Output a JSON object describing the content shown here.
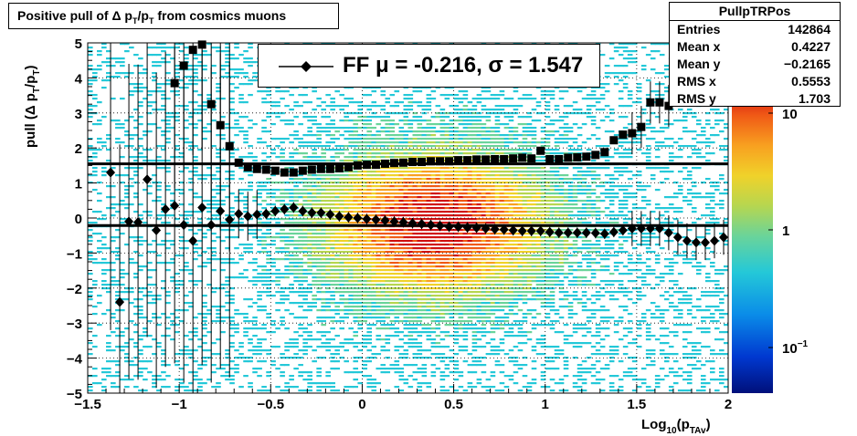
{
  "title": {
    "prefix": "Positive pull of",
    "delta": "Δ",
    "p": "p",
    "sub": "T"
  },
  "stats": {
    "name": "PullpTRPos",
    "rows": [
      {
        "label": "Entries",
        "value": "142864"
      },
      {
        "label": "Mean x",
        "value": "0.4227"
      },
      {
        "label": "Mean y",
        "value": "−0.2165"
      },
      {
        "label": "RMS x",
        "value": "0.5553"
      },
      {
        "label": "RMS y",
        "value": "1.703"
      }
    ]
  },
  "legend": {
    "label": "FF μ = -0.216, σ =   1.547"
  },
  "x_axis": {
    "title_main": "Log",
    "title_sub1": "10",
    "title_p": "(p",
    "title_sub2": "TAv",
    "title_close": ")",
    "ticks": [
      "−1.5",
      "−1",
      "−0.5",
      "0",
      "0.5",
      "1",
      "1.5",
      "2"
    ]
  },
  "y_axis": {
    "title": "pull (Δ p",
    "title_sub": "T",
    "title_mid": "/p",
    "title_sub2": "T",
    "title_close": ")",
    "ticks": [
      "−5",
      "−4",
      "−3",
      "−2",
      "−1",
      "0",
      "1",
      "2",
      "3",
      "4",
      "5"
    ]
  },
  "colorbar": {
    "labels": [
      "10",
      "1",
      "10"
    ],
    "exp": "−1"
  },
  "chart_data": {
    "type": "scatter",
    "title": "Positive pull of Δ p_T/p_T from cosmics muons",
    "xlabel": "Log10(p_TAv)",
    "ylabel": "pull (Δ p_T/p_T)",
    "xlim": [
      -1.5,
      2
    ],
    "ylim": [
      -5,
      5
    ],
    "background": "2D histogram (heatmap) of pull vs Log10(p_TAv), log color scale",
    "horizontal_lines": [
      1.547,
      -0.216
    ],
    "series": [
      {
        "name": "FF μ = -0.216, σ =   1.547",
        "marker": "diamond",
        "x": [
          -1.375,
          -1.325,
          -1.275,
          -1.225,
          -1.175,
          -1.125,
          -1.075,
          -1.025,
          -0.975,
          -0.925,
          -0.875,
          -0.825,
          -0.775,
          -0.725,
          -0.675,
          -0.625,
          -0.575,
          -0.525,
          -0.475,
          -0.425,
          -0.375,
          -0.325,
          -0.275,
          -0.225,
          -0.175,
          -0.125,
          -0.075,
          -0.025,
          0.025,
          0.075,
          0.125,
          0.175,
          0.225,
          0.275,
          0.325,
          0.375,
          0.425,
          0.475,
          0.525,
          0.575,
          0.625,
          0.675,
          0.725,
          0.775,
          0.825,
          0.875,
          0.925,
          0.975,
          1.025,
          1.075,
          1.125,
          1.175,
          1.225,
          1.275,
          1.325,
          1.375,
          1.425,
          1.475,
          1.525,
          1.575,
          1.625,
          1.675,
          1.725,
          1.775,
          1.825,
          1.875,
          1.925,
          1.975
        ],
        "y": [
          1.3,
          -2.4,
          -0.1,
          -0.12,
          1.1,
          -0.35,
          0.25,
          0.35,
          -0.2,
          -0.65,
          0.3,
          -0.2,
          0.2,
          -0.05,
          0.12,
          0.05,
          0.1,
          0.12,
          0.2,
          0.25,
          0.3,
          0.2,
          0.15,
          0.15,
          0.1,
          0.05,
          0.02,
          0.0,
          -0.03,
          -0.05,
          -0.07,
          -0.1,
          -0.12,
          -0.15,
          -0.17,
          -0.2,
          -0.22,
          -0.25,
          -0.25,
          -0.27,
          -0.28,
          -0.3,
          -0.32,
          -0.33,
          -0.35,
          -0.37,
          -0.37,
          -0.37,
          -0.4,
          -0.42,
          -0.42,
          -0.42,
          -0.42,
          -0.43,
          -0.45,
          -0.4,
          -0.35,
          -0.3,
          -0.3,
          -0.3,
          -0.3,
          -0.42,
          -0.55,
          -0.65,
          -0.7,
          -0.7,
          -0.65,
          -0.55
        ]
      },
      {
        "name": "RMS",
        "marker": "square",
        "x": [
          -1.025,
          -0.975,
          -0.925,
          -0.875,
          -0.825,
          -0.775,
          -0.725,
          -0.675,
          -0.625,
          -0.575,
          -0.525,
          -0.475,
          -0.425,
          -0.375,
          -0.325,
          -0.275,
          -0.225,
          -0.175,
          -0.125,
          -0.075,
          -0.025,
          0.025,
          0.075,
          0.125,
          0.175,
          0.225,
          0.275,
          0.325,
          0.375,
          0.425,
          0.475,
          0.525,
          0.575,
          0.625,
          0.675,
          0.725,
          0.775,
          0.825,
          0.875,
          0.925,
          0.975,
          1.025,
          1.075,
          1.125,
          1.175,
          1.225,
          1.275,
          1.325,
          1.375,
          1.425,
          1.475,
          1.525,
          1.575,
          1.625,
          1.675,
          1.725,
          1.775,
          1.825
        ],
        "y": [
          3.85,
          4.35,
          4.8,
          4.95,
          3.25,
          2.65,
          2.05,
          1.58,
          1.45,
          1.4,
          1.38,
          1.35,
          1.3,
          1.3,
          1.35,
          1.38,
          1.4,
          1.4,
          1.42,
          1.45,
          1.5,
          1.52,
          1.52,
          1.55,
          1.57,
          1.58,
          1.6,
          1.6,
          1.62,
          1.62,
          1.62,
          1.65,
          1.65,
          1.67,
          1.67,
          1.68,
          1.68,
          1.7,
          1.72,
          1.7,
          1.92,
          1.68,
          1.68,
          1.72,
          1.73,
          1.75,
          1.8,
          1.88,
          2.22,
          2.38,
          2.42,
          2.6,
          3.3,
          3.3,
          3.2,
          4.45,
          4.45,
          4.9
        ]
      }
    ]
  }
}
